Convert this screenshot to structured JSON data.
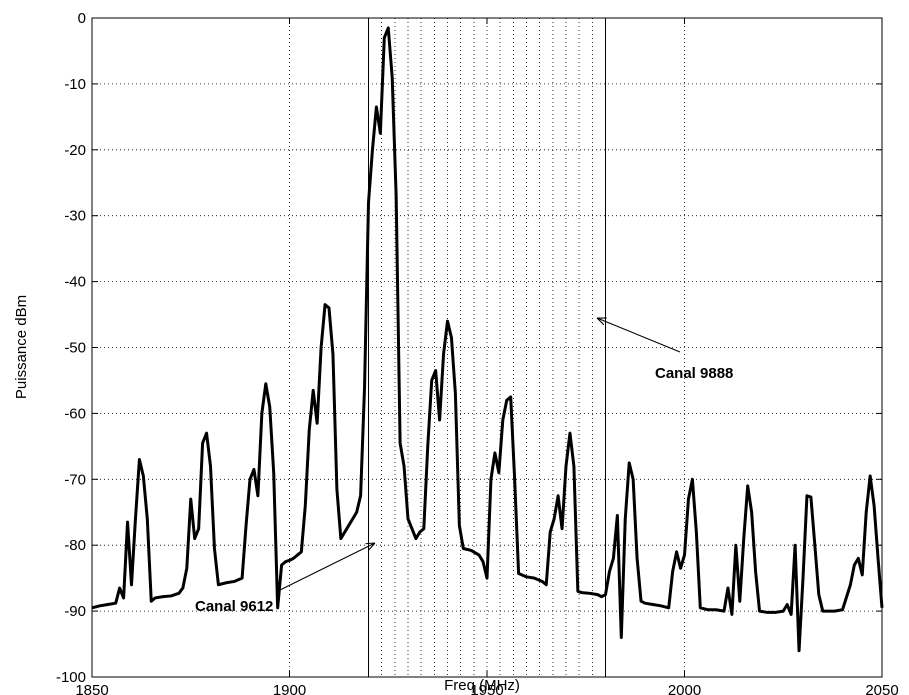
{
  "chart_data": {
    "type": "line",
    "xlabel": "Freq (MHz)",
    "ylabel": "Puissance dBm",
    "xlim": [
      1850,
      2050
    ],
    "ylim": [
      -100,
      0
    ],
    "xticks": [
      1850,
      1900,
      1950,
      2000,
      2050
    ],
    "yticks": [
      -100,
      -90,
      -80,
      -70,
      -60,
      -50,
      -40,
      -30,
      -20,
      -10,
      0
    ],
    "grid": true,
    "markers": [
      1920,
      1980
    ],
    "band_lines": [
      1923.3,
      1926.7,
      1930,
      1933.3,
      1936.7,
      1940,
      1943.3,
      1946.7,
      1953.3,
      1956.7,
      1960,
      1963.3,
      1966.7,
      1970,
      1973.3,
      1976.7
    ],
    "annotations": [
      "Canal 9612",
      "Canal 9888"
    ],
    "series": [
      {
        "color": "#000000",
        "x": [
          1850,
          1852,
          1854,
          1856,
          1857,
          1858,
          1859,
          1860,
          1861,
          1862,
          1863,
          1864,
          1865,
          1866,
          1868,
          1870,
          1872,
          1873,
          1874,
          1875,
          1876,
          1877,
          1878,
          1879,
          1880,
          1881,
          1882,
          1884,
          1886,
          1888,
          1889,
          1890,
          1891,
          1892,
          1893,
          1894,
          1895,
          1896,
          1897,
          1898,
          1899,
          1900,
          1901,
          1902,
          1903,
          1904,
          1905,
          1906,
          1907,
          1908,
          1909,
          1910,
          1911,
          1912,
          1913,
          1914,
          1915,
          1916,
          1917,
          1918,
          1919,
          1920,
          1921,
          1922,
          1923,
          1924,
          1925,
          1926,
          1927,
          1928,
          1929,
          1930,
          1931,
          1932,
          1933,
          1934,
          1935,
          1936,
          1937,
          1938,
          1939,
          1940,
          1941,
          1942,
          1943,
          1944,
          1946,
          1948,
          1949,
          1950,
          1951,
          1952,
          1953,
          1954,
          1955,
          1956,
          1957,
          1958,
          1960,
          1962,
          1964,
          1965,
          1966,
          1967,
          1968,
          1969,
          1970,
          1971,
          1972,
          1973,
          1974,
          1976,
          1978,
          1979,
          1980,
          1981,
          1982,
          1983,
          1984,
          1985,
          1986,
          1987,
          1988,
          1989,
          1990,
          1992,
          1994,
          1996,
          1997,
          1998,
          1999,
          2000,
          2001,
          2002,
          2003,
          2004,
          2006,
          2008,
          2010,
          2011,
          2012,
          2013,
          2014,
          2015,
          2016,
          2017,
          2018,
          2019,
          2021,
          2023,
          2025,
          2026,
          2027,
          2028,
          2029,
          2030,
          2031,
          2032,
          2033,
          2034,
          2035,
          2038,
          2040,
          2042,
          2043,
          2044,
          2045,
          2046,
          2047,
          2048,
          2049,
          2050
        ],
        "values": [
          -89.5,
          -89.2,
          -89,
          -88.8,
          -86.5,
          -88,
          -76.5,
          -86,
          -76,
          -67,
          -69.5,
          -76,
          -88.5,
          -88,
          -87.8,
          -87.7,
          -87.3,
          -86.5,
          -83.5,
          -73,
          -79,
          -77.5,
          -64.5,
          -63,
          -68,
          -80.5,
          -86,
          -85.7,
          -85.5,
          -85,
          -77,
          -70,
          -68.5,
          -72.5,
          -60,
          -55.5,
          -59,
          -69,
          -89.5,
          -83,
          -82.5,
          -82.3,
          -82,
          -81.5,
          -81,
          -74,
          -62.5,
          -56.5,
          -61.5,
          -50,
          -43.5,
          -44,
          -51,
          -71.5,
          -79,
          -78,
          -77,
          -76,
          -75,
          -72.5,
          -56,
          -28,
          -20,
          -13.5,
          -17.5,
          -3,
          -1.5,
          -9,
          -27,
          -64.5,
          -68,
          -76,
          -77.5,
          -79,
          -78,
          -77.5,
          -65,
          -55,
          -53.5,
          -61,
          -51,
          -46,
          -48.5,
          -57,
          -77,
          -80.5,
          -80.8,
          -81.5,
          -82.5,
          -85,
          -70,
          -66,
          -69,
          -61,
          -58,
          -57.5,
          -70,
          -84.3,
          -84.8,
          -85,
          -85.5,
          -86,
          -78,
          -76,
          -72.5,
          -77.5,
          -68,
          -63,
          -68,
          -87,
          -87.2,
          -87.3,
          -87.5,
          -87.8,
          -87.5,
          -84,
          -82,
          -75.5,
          -94,
          -76,
          -67.5,
          -70,
          -82,
          -88.5,
          -88.8,
          -89,
          -89.2,
          -89.5,
          -84,
          -81,
          -83.5,
          -81.5,
          -73,
          -70,
          -78,
          -89.5,
          -89.8,
          -89.8,
          -90,
          -86.5,
          -90.5,
          -80,
          -88.5,
          -79,
          -71,
          -75,
          -84,
          -90,
          -90.2,
          -90.2,
          -90,
          -89,
          -90.5,
          -80,
          -96,
          -85,
          -72.5,
          -72.7,
          -80,
          -87.5,
          -90,
          -90,
          -89.8,
          -86,
          -83,
          -82,
          -84.5,
          -75,
          -69.5,
          -74,
          -82,
          -89.5
        ]
      }
    ]
  }
}
